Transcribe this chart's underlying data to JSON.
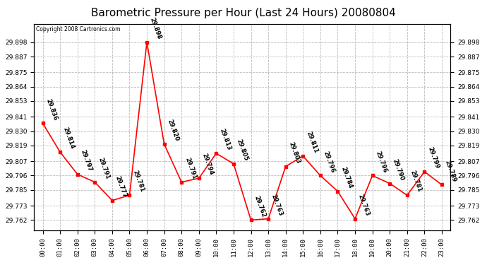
{
  "title": "Barometric Pressure per Hour (Last 24 Hours) 20080804",
  "copyright": "Copyright 2008 Cartronics.com",
  "hours": [
    "00:00",
    "01:00",
    "02:00",
    "03:00",
    "04:00",
    "05:00",
    "06:00",
    "07:00",
    "08:00",
    "09:00",
    "10:00",
    "11:00",
    "12:00",
    "13:00",
    "14:00",
    "15:00",
    "16:00",
    "17:00",
    "18:00",
    "19:00",
    "20:00",
    "21:00",
    "22:00",
    "23:00"
  ],
  "values": [
    29.836,
    29.814,
    29.797,
    29.791,
    29.777,
    29.781,
    29.898,
    29.82,
    29.791,
    29.794,
    29.813,
    29.805,
    29.762,
    29.763,
    29.803,
    29.811,
    29.796,
    29.784,
    29.763,
    29.796,
    29.79,
    29.781,
    29.799,
    29.789
  ],
  "line_color": "#ff0000",
  "marker_color": "#ff0000",
  "bg_color": "#ffffff",
  "grid_color": "#bbbbbb",
  "title_fontsize": 11,
  "annotation_fontsize": 6,
  "tick_fontsize": 6.5,
  "ytick_values": [
    29.762,
    29.773,
    29.785,
    29.796,
    29.807,
    29.819,
    29.83,
    29.841,
    29.853,
    29.864,
    29.875,
    29.887,
    29.898
  ],
  "ylim_min": 29.754,
  "ylim_max": 29.912
}
